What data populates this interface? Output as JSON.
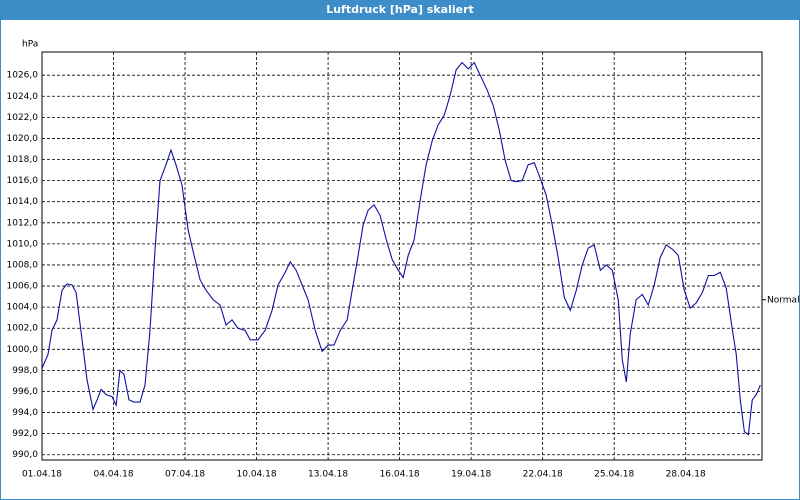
{
  "chart_data": {
    "type": "line",
    "title": "Luftdruck [hPa] skaliert",
    "y_unit": "hPa",
    "reference_line": {
      "label": "Normal",
      "value": 1004.7
    },
    "xlim": [
      0,
      30.2
    ],
    "ylim": [
      989.5,
      1028.2
    ],
    "xticks": [
      {
        "value": 0,
        "label": "01.04.18"
      },
      {
        "value": 3,
        "label": "04.04.18"
      },
      {
        "value": 6,
        "label": "07.04.18"
      },
      {
        "value": 9,
        "label": "10.04.18"
      },
      {
        "value": 12,
        "label": "13.04.18"
      },
      {
        "value": 15,
        "label": "16.04.18"
      },
      {
        "value": 18,
        "label": "19.04.18"
      },
      {
        "value": 21,
        "label": "22.04.18"
      },
      {
        "value": 24,
        "label": "25.04.18"
      },
      {
        "value": 27,
        "label": "28.04.18"
      }
    ],
    "yticks": [
      {
        "value": 990,
        "label": "990,0"
      },
      {
        "value": 992,
        "label": "992,0"
      },
      {
        "value": 994,
        "label": "994,0"
      },
      {
        "value": 996,
        "label": "996,0"
      },
      {
        "value": 998,
        "label": "998,0"
      },
      {
        "value": 1000,
        "label": "1000,0"
      },
      {
        "value": 1002,
        "label": "1002,0"
      },
      {
        "value": 1004,
        "label": "1004,0"
      },
      {
        "value": 1006,
        "label": "1006,0"
      },
      {
        "value": 1008,
        "label": "1008,0"
      },
      {
        "value": 1010,
        "label": "1010,0"
      },
      {
        "value": 1012,
        "label": "1012,0"
      },
      {
        "value": 1014,
        "label": "1014,0"
      },
      {
        "value": 1016,
        "label": "1016,0"
      },
      {
        "value": 1018,
        "label": "1018,0"
      },
      {
        "value": 1020,
        "label": "1020,0"
      },
      {
        "value": 1022,
        "label": "1022,0"
      },
      {
        "value": 1024,
        "label": "1024,0"
      },
      {
        "value": 1026,
        "label": "1026,0"
      }
    ],
    "grid": true,
    "x": [
      0,
      0.25,
      0.42,
      0.63,
      0.84,
      1.05,
      1.26,
      1.43,
      1.68,
      1.89,
      2.14,
      2.31,
      2.48,
      2.69,
      2.94,
      3.11,
      3.27,
      3.44,
      3.65,
      3.86,
      4.11,
      4.32,
      4.53,
      4.74,
      4.95,
      5.2,
      5.41,
      5.62,
      5.87,
      6.13,
      6.38,
      6.63,
      6.88,
      7.18,
      7.47,
      7.72,
      7.97,
      8.22,
      8.52,
      8.73,
      9.06,
      9.36,
      9.65,
      9.9,
      10.2,
      10.41,
      10.66,
      10.91,
      11.16,
      11.46,
      11.75,
      12,
      12.25,
      12.51,
      12.8,
      13.01,
      13.26,
      13.47,
      13.68,
      13.93,
      14.18,
      14.44,
      14.69,
      14.94,
      15.15,
      15.36,
      15.61,
      15.86,
      16.11,
      16.37,
      16.62,
      16.87,
      17.12,
      17.37,
      17.62,
      17.88,
      18.13,
      18.38,
      18.67,
      18.93,
      19.18,
      19.43,
      19.68,
      19.89,
      20.14,
      20.39,
      20.65,
      20.9,
      21.15,
      21.4,
      21.65,
      21.91,
      22.16,
      22.41,
      22.66,
      22.91,
      23.16,
      23.42,
      23.67,
      23.92,
      24.17,
      24.34,
      24.51,
      24.67,
      24.92,
      25.18,
      25.43,
      25.68,
      25.93,
      26.18,
      26.44,
      26.69,
      26.94,
      27.19,
      27.44,
      27.7,
      27.95,
      28.2,
      28.45,
      28.7,
      28.96,
      29.12,
      29.29,
      29.46,
      29.63,
      29.79,
      29.96,
      30.13
    ],
    "series": [
      {
        "color": "#1010a0",
        "values": [
          998.2,
          999.5,
          1001.8,
          1002.8,
          1005.6,
          1006.2,
          1006.1,
          1005.4,
          1000.9,
          997.1,
          994.3,
          995.2,
          996.2,
          995.7,
          995.5,
          994.7,
          998,
          997.6,
          995.2,
          995,
          995,
          996.6,
          1001.8,
          1009.4,
          1016,
          1017.5,
          1018.9,
          1017.5,
          1015.6,
          1011.3,
          1008.9,
          1006.6,
          1005.6,
          1004.7,
          1004.2,
          1002.3,
          1002.8,
          1002,
          1001.8,
          1000.9,
          1000.9,
          1001.8,
          1003.7,
          1006.1,
          1007.3,
          1008.3,
          1007.5,
          1006.1,
          1004.7,
          1001.8,
          999.8,
          1000.4,
          1000.4,
          1001.8,
          1002.8,
          1005.6,
          1008.9,
          1011.8,
          1013.2,
          1013.7,
          1012.7,
          1010.4,
          1008.5,
          1007.5,
          1006.8,
          1008.9,
          1010.4,
          1014.1,
          1017.5,
          1019.8,
          1021.3,
          1022.2,
          1024.1,
          1026.5,
          1027.2,
          1026.6,
          1027.2,
          1026,
          1024.6,
          1023.1,
          1020.8,
          1017.9,
          1016,
          1015.9,
          1016,
          1017.5,
          1017.7,
          1016.2,
          1014.6,
          1011.8,
          1008.7,
          1004.9,
          1003.7,
          1005.6,
          1008,
          1009.6,
          1009.9,
          1007.5,
          1008,
          1007.5,
          1004.7,
          999,
          996.9,
          1001.4,
          1004.7,
          1005.2,
          1004.2,
          1006.1,
          1008.7,
          1009.9,
          1009.5,
          1008.9,
          1005.6,
          1003.9,
          1004.4,
          1005.4,
          1007,
          1007,
          1007.3,
          1005.8,
          1001.8,
          999.5,
          995.2,
          992.2,
          991.9,
          995.2,
          995.7,
          996.6
        ]
      }
    ]
  }
}
